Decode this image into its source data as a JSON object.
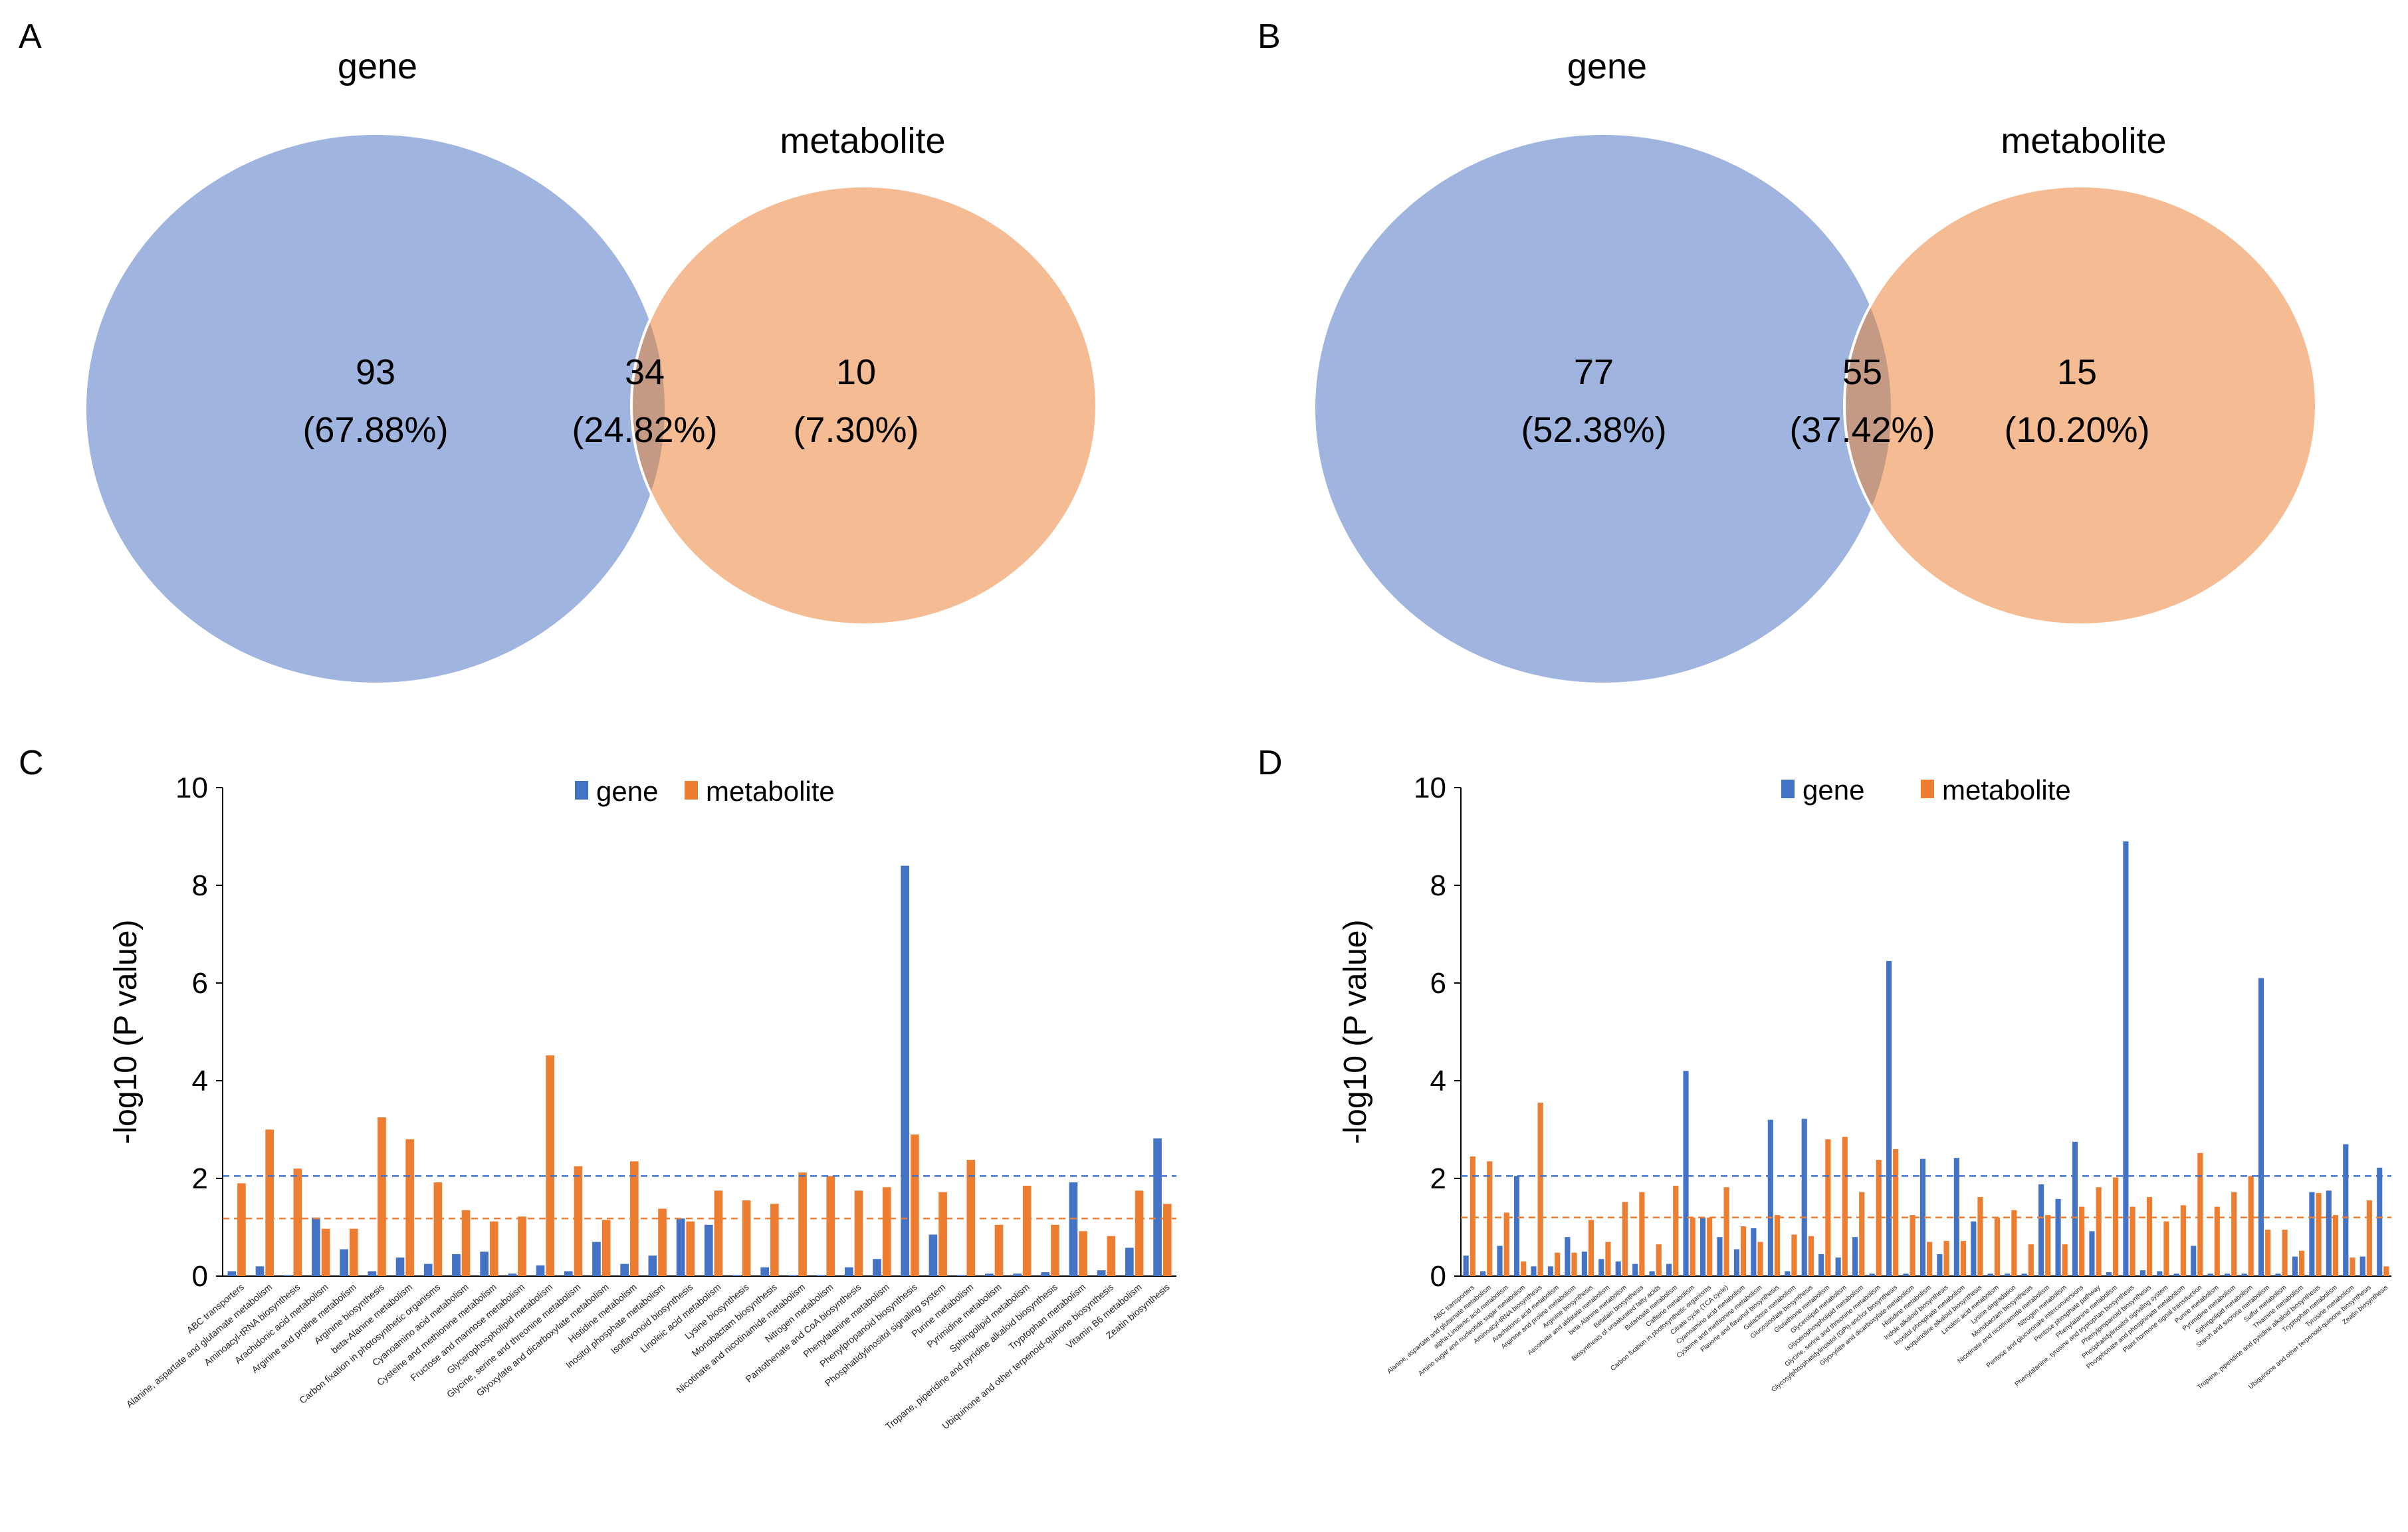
{
  "panels": {
    "A": {
      "label": "A",
      "set_left": "gene",
      "set_right": "metabolite",
      "left_only": {
        "count": "93",
        "pct": "(67.88%)"
      },
      "overlap": {
        "count": "34",
        "pct": "(24.82%)"
      },
      "right_only": {
        "count": "10",
        "pct": "(7.30%)"
      }
    },
    "B": {
      "label": "B",
      "set_left": "gene",
      "set_right": "metabolite",
      "left_only": {
        "count": "77",
        "pct": "(52.38%)"
      },
      "overlap": {
        "count": "55",
        "pct": "(37.42%)"
      },
      "right_only": {
        "count": "15",
        "pct": "(10.20%)"
      }
    },
    "C": {
      "label": "C"
    },
    "D": {
      "label": "D"
    }
  },
  "colors": {
    "gene": "#4472C4",
    "metabolite": "#ED7D31",
    "venn_gene": "#9FB4DF",
    "venn_metabolite": "#F5BB93",
    "venn_overlap": "#C59A84"
  },
  "chart_data": [
    {
      "panel": "A",
      "type": "venn",
      "sets": [
        "gene",
        "metabolite"
      ],
      "regions": [
        {
          "set": "gene only",
          "count": 93,
          "percent": 67.88
        },
        {
          "set": "gene ∩ metabolite",
          "count": 34,
          "percent": 24.82
        },
        {
          "set": "metabolite only",
          "count": 10,
          "percent": 7.3
        }
      ]
    },
    {
      "panel": "B",
      "type": "venn",
      "sets": [
        "gene",
        "metabolite"
      ],
      "regions": [
        {
          "set": "gene only",
          "count": 77,
          "percent": 52.38
        },
        {
          "set": "gene ∩ metabolite",
          "count": 55,
          "percent": 37.42
        },
        {
          "set": "metabolite only",
          "count": 15,
          "percent": 10.2
        }
      ]
    },
    {
      "panel": "C",
      "type": "bar",
      "title": "",
      "xlabel": "",
      "ylabel": "-log10 (P value)",
      "ylim": [
        0,
        10
      ],
      "yticks": [
        "0",
        "2",
        "4",
        "6",
        "8",
        "10"
      ],
      "legend": [
        "gene",
        "metabolite"
      ],
      "legend_position": "top",
      "threshold_lines": {
        "gene": 2.05,
        "metabolite": 1.18
      },
      "categories": [
        "ABC transporters",
        "Alanine, aspartate and glutamate metabolism",
        "Aminoacyl-tRNA biosynthesis",
        "Arachidonic acid metabolism",
        "Arginine and proline metabolism",
        "Arginine biosynthesis",
        "beta-Alanine metabolism",
        "Carbon fixation in photosynthetic organisms",
        "Cyanoamino acid metabolism",
        "Cysteine and methionine metabolism",
        "Fructose and mannose metabolism",
        "Glycerophospholipid metabolism",
        "Glycine, serine and threonine metabolism",
        "Glyoxylate and dicarboxylate metabolism",
        "Histidine metabolism",
        "Inositol phosphate metabolism",
        "Isoflavonoid biosynthesis",
        "Linoleic acid metabolism",
        "Lysine biosynthesis",
        "Monobactam biosynthesis",
        "Nicotinate and nicotinamide metabolism",
        "Nitrogen metabolism",
        "Pantothenate and CoA biosynthesis",
        "Phenylalanine metabolism",
        "Phenylpropanoid biosynthesis",
        "Phosphatidylinositol signaling system",
        "Purine metabolism",
        "Pyrimidine metabolism",
        "Sphingolipid metabolism",
        "Tropane, piperidine and pyridine alkaloid biosynthesis",
        "Tryptophan metabolism",
        "Ubiquinone and other terpenoid-quinone biosynthesis",
        "Vitamin B6 metabolism",
        "Zeatin biosynthesis"
      ],
      "series": [
        {
          "name": "gene",
          "values": [
            0.1,
            0.2,
            0.02,
            1.2,
            0.55,
            0.1,
            0.38,
            0.25,
            0.45,
            0.5,
            0.05,
            0.22,
            0.1,
            0.7,
            0.25,
            0.42,
            1.18,
            1.05,
            0.02,
            0.18,
            0.02,
            0.02,
            0.18,
            0.35,
            8.4,
            0.85,
            0.02,
            0.05,
            0.05,
            0.08,
            1.92,
            0.12,
            0.58,
            2.82
          ]
        },
        {
          "name": "metabolite",
          "values": [
            1.9,
            3.0,
            2.2,
            0.97,
            0.97,
            3.25,
            2.8,
            1.92,
            1.35,
            1.12,
            1.22,
            4.52,
            2.25,
            1.15,
            2.35,
            1.38,
            1.12,
            1.75,
            1.55,
            1.48,
            2.12,
            2.05,
            1.75,
            1.82,
            2.9,
            1.72,
            2.38,
            1.05,
            1.85,
            1.05,
            0.92,
            0.82,
            1.75,
            1.48
          ]
        }
      ]
    },
    {
      "panel": "D",
      "type": "bar",
      "title": "",
      "xlabel": "",
      "ylabel": "-log10 (P value)",
      "ylim": [
        0,
        10
      ],
      "yticks": [
        "0",
        "2",
        "4",
        "6",
        "8",
        "10"
      ],
      "legend": [
        "gene",
        "metabolite"
      ],
      "legend_position": "top",
      "threshold_lines": {
        "gene": 2.05,
        "metabolite": 1.2
      },
      "categories": [
        "ABC transporters",
        "Alanine, aspartate and glutamate metabolism",
        "alpha-Linolenic acid metabolism",
        "Amino sugar and nucleotide sugar metabolism",
        "Aminoacyl-tRNA biosynthesis",
        "Arachidonic acid metabolism",
        "Arginine and proline metabolism",
        "Arginine biosynthesis",
        "Ascorbate and aldarate metabolism",
        "beta-Alanine metabolism",
        "Betalain biosynthesis",
        "Biosynthesis of unsaturated fatty acids",
        "Butanoate metabolism",
        "Caffeine metabolism",
        "Carbon fixation in photosynthetic organisms",
        "Citrate cycle (TCA cycle)",
        "Cyanoamino acid metabolism",
        "Cysteine and methionine metabolism",
        "Flavone and flavonol biosynthesis",
        "Galactose metabolism",
        "Glucosinolate biosynthesis",
        "Glutathione metabolism",
        "Glycerolipid metabolism",
        "Glycerophospholipid metabolism",
        "Glycine, serine and threonine metabolism",
        "Glycosylphosphatidylinositol (GPI)-anchor biosynthesis",
        "Glyoxylate and dicarboxylate metabolism",
        "Histidine metabolism",
        "Indole alkaloid biosynthesis",
        "Inositol phosphate metabolism",
        "Isoquinoline alkaloid biosynthesis",
        "Linoleic acid metabolism",
        "Lysine degradation",
        "Monobactam biosynthesis",
        "Nicotinate and nicotinamide metabolism",
        "Nitrogen metabolism",
        "Pentose and glucuronate interconversions",
        "Pentose phosphate pathway",
        "Phenylalanine metabolism",
        "Phenylalanine, tyrosine and tryptophan biosynthesis",
        "Phenylpropanoid biosynthesis",
        "Phosphatidylinositol signaling system",
        "Phosphonate and phosphinate metabolism",
        "Plant hormone signal transduction",
        "Purine metabolism",
        "Pyrimidine metabolism",
        "Sphingolipid metabolism",
        "Starch and sucrose metabolism",
        "Sulfur metabolism",
        "Thiamine metabolism",
        "Tropane, piperidine and pyridine alkaloid biosynthesis",
        "Tryptophan metabolism",
        "Tyrosine metabolism",
        "Ubiquinone and other terpenoid-quinone biosynthesis",
        "Zeatin biosynthesis"
      ],
      "series": [
        {
          "name": "gene",
          "values": [
            0.42,
            0.1,
            0.62,
            2.05,
            0.2,
            0.2,
            0.8,
            0.5,
            0.35,
            0.3,
            0.25,
            0.1,
            0.25,
            4.2,
            1.2,
            0.8,
            0.55,
            0.98,
            3.2,
            0.1,
            3.22,
            0.45,
            0.38,
            0.8,
            0.05,
            6.45,
            0.05,
            2.4,
            0.45,
            2.42,
            1.12,
            0.05,
            0.05,
            0.05,
            1.88,
            1.58,
            2.75,
            0.92,
            0.08,
            8.9,
            0.12,
            0.1,
            0.05,
            0.62,
            0.05,
            0.05,
            0.05,
            6.1,
            0.05,
            0.4,
            1.72,
            1.75,
            2.7,
            0.4,
            2.22
          ]
        },
        {
          "name": "metabolite",
          "values": [
            2.45,
            2.35,
            1.3,
            0.3,
            3.55,
            0.48,
            0.48,
            1.15,
            0.7,
            1.52,
            1.72,
            0.65,
            1.85,
            1.2,
            1.2,
            1.82,
            1.02,
            0.7,
            1.25,
            0.85,
            0.82,
            2.8,
            2.85,
            1.72,
            2.38,
            2.6,
            1.25,
            0.7,
            0.72,
            0.72,
            1.62,
            1.2,
            1.35,
            0.65,
            1.25,
            0.65,
            1.42,
            1.82,
            2.02,
            1.42,
            1.62,
            1.12,
            1.45,
            2.52,
            1.42,
            1.72,
            2.05,
            0.95,
            0.95,
            0.52,
            1.7,
            1.25,
            0.38,
            1.55,
            0.2
          ]
        }
      ]
    }
  ]
}
